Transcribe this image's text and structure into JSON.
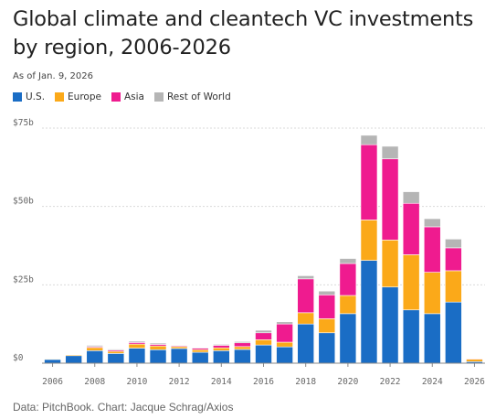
{
  "header": {
    "title": "Global climate and cleantech VC investments by region, 2006-2026",
    "subtitle": "As of Jan. 9, 2026"
  },
  "footer": {
    "source": "Data: PitchBook. Chart: Jacque Schrag/Axios"
  },
  "chart_data": {
    "type": "bar",
    "stacked": true,
    "title": "Global climate and cleantech VC investments by region, 2006-2026",
    "xlabel": "",
    "ylabel": "",
    "ylim": [
      0,
      75
    ],
    "yticks": [
      0,
      25,
      50,
      75
    ],
    "ytick_labels": [
      "$0",
      "$25b",
      "$50b",
      "$75b"
    ],
    "xtick_labels": [
      "2006",
      "2008",
      "2010",
      "2012",
      "2014",
      "2016",
      "2018",
      "2020",
      "2022",
      "2024",
      "2026"
    ],
    "grid": "horizontal",
    "legend_position": "top-left",
    "categories": [
      "2006",
      "2007",
      "2008",
      "2009",
      "2010",
      "2011",
      "2012",
      "2013",
      "2014",
      "2015",
      "2016",
      "2017",
      "2018",
      "2019",
      "2020",
      "2021",
      "2022",
      "2023",
      "2024",
      "2025",
      "2026"
    ],
    "series": [
      {
        "name": "U.S.",
        "color": "#1a6dc5",
        "values": [
          1.2,
          2.4,
          4.0,
          3.1,
          4.8,
          4.3,
          4.7,
          3.5,
          4.0,
          4.4,
          5.8,
          5.2,
          12.5,
          9.7,
          15.8,
          32.8,
          24.3,
          17.0,
          15.8,
          19.5,
          0.5
        ]
      },
      {
        "name": "Europe",
        "color": "#fba919",
        "values": [
          0.2,
          0.3,
          1.0,
          0.7,
          1.3,
          1.2,
          0.6,
          0.8,
          0.9,
          0.9,
          1.7,
          1.5,
          3.6,
          4.5,
          5.8,
          12.9,
          15.0,
          17.6,
          13.2,
          10.0,
          0.8
        ]
      },
      {
        "name": "Asia",
        "color": "#ef1b8f",
        "values": [
          0.0,
          0.1,
          0.3,
          0.4,
          0.5,
          0.5,
          0.3,
          0.5,
          0.8,
          1.2,
          2.2,
          5.8,
          10.8,
          7.6,
          10.2,
          24.0,
          25.9,
          16.4,
          14.5,
          7.3,
          0.2
        ]
      },
      {
        "name": "Rest of World",
        "color": "#b5b5b5",
        "values": [
          0.1,
          0.1,
          0.4,
          0.3,
          0.4,
          0.4,
          0.2,
          0.2,
          0.3,
          0.4,
          0.8,
          0.7,
          1.0,
          1.2,
          1.6,
          3.0,
          4.0,
          3.7,
          2.6,
          2.8,
          0.1
        ]
      }
    ],
    "axis_color": "#888888",
    "grid_color": "#d9d9d9",
    "label_color": "#666666"
  }
}
